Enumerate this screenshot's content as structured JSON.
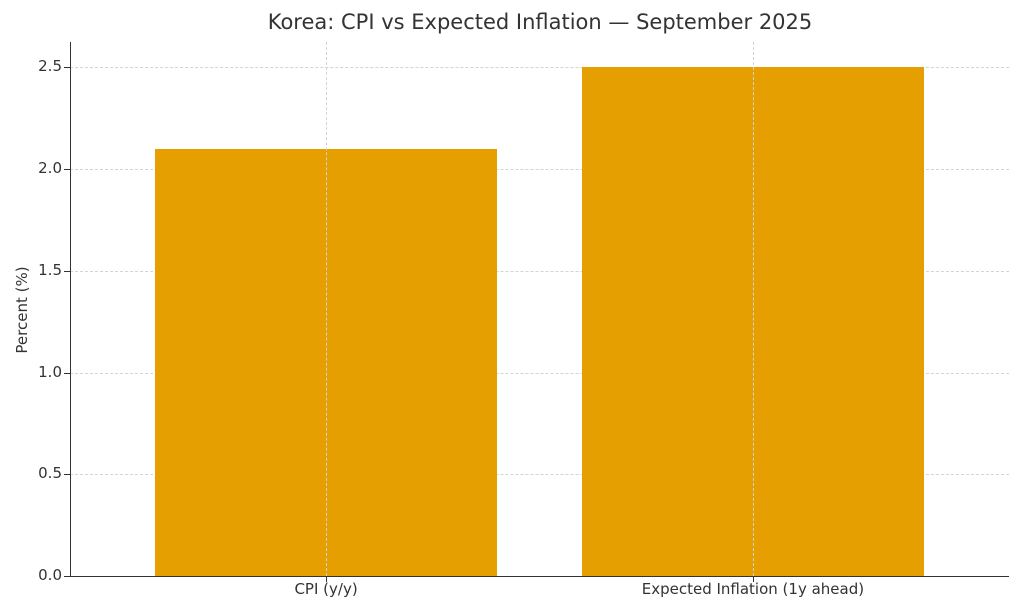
{
  "chart_data": {
    "type": "bar",
    "title": "Korea: CPI vs Expected Inflation — September 2025",
    "xlabel": "",
    "ylabel": "Percent (%)",
    "categories": [
      "CPI (y/y)",
      "Expected Inflation (1y ahead)"
    ],
    "values": [
      2.1,
      2.5
    ],
    "ylim": [
      0,
      2.625
    ],
    "yticks": [
      "0.0",
      "0.5",
      "1.0",
      "1.5",
      "2.0",
      "2.5"
    ],
    "grid": true,
    "bar_color": "#E69F00",
    "legend": null
  }
}
